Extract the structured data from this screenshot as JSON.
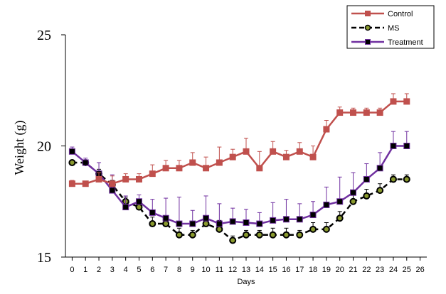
{
  "chart_data": {
    "type": "line",
    "title": "",
    "xlabel": "Days",
    "ylabel": "Weight (g)",
    "xlim": [
      -0.5,
      26.5
    ],
    "ylim": [
      15,
      25
    ],
    "x_ticks": [
      0,
      1,
      2,
      3,
      4,
      5,
      6,
      7,
      8,
      9,
      10,
      11,
      12,
      13,
      14,
      15,
      16,
      17,
      18,
      19,
      20,
      21,
      22,
      23,
      24,
      25,
      26
    ],
    "y_ticks": [
      15,
      20,
      25
    ],
    "grid": false,
    "legend_position": "top-right",
    "x": [
      0,
      1,
      2,
      3,
      4,
      5,
      6,
      7,
      8,
      9,
      10,
      11,
      12,
      13,
      14,
      15,
      16,
      17,
      18,
      19,
      20,
      21,
      22,
      23,
      24,
      25
    ],
    "series": [
      {
        "name": "Control",
        "color": "#c0504d",
        "line": "solid",
        "marker": "square",
        "values": [
          18.3,
          18.3,
          18.5,
          18.3,
          18.5,
          18.5,
          18.75,
          19.0,
          19.0,
          19.25,
          19.0,
          19.25,
          19.5,
          19.75,
          19.0,
          19.75,
          19.5,
          19.75,
          19.5,
          20.75,
          21.5,
          21.5,
          21.5,
          21.5,
          22.0,
          22.0
        ],
        "error": [
          0.15,
          0.1,
          0.3,
          0.35,
          0.25,
          0.25,
          0.4,
          0.35,
          0.35,
          0.45,
          0.5,
          0.7,
          0.35,
          0.6,
          0.75,
          0.45,
          0.3,
          0.4,
          0.5,
          0.4,
          0.25,
          0.2,
          0.2,
          0.2,
          0.35,
          0.35
        ]
      },
      {
        "name": "MS",
        "color": "#000000",
        "line": "dashed",
        "marker": "circle",
        "marker_fill": "#8a9a2e",
        "values": [
          19.25,
          19.25,
          18.75,
          18.25,
          17.5,
          17.25,
          16.5,
          16.5,
          16.0,
          16.0,
          16.5,
          16.25,
          15.75,
          16.0,
          16.0,
          16.0,
          16.0,
          16.0,
          16.25,
          16.25,
          16.75,
          17.5,
          17.75,
          18.0,
          18.5,
          18.5
        ],
        "error": [
          0.1,
          0.1,
          0.2,
          0.2,
          0.2,
          0.2,
          0.3,
          0.3,
          0.3,
          0.2,
          0.3,
          0.4,
          0.2,
          0.2,
          0.2,
          0.3,
          0.3,
          0.2,
          0.3,
          0.3,
          0.3,
          0.3,
          0.3,
          0.3,
          0.2,
          0.2
        ]
      },
      {
        "name": "Treatment",
        "color": "#7030a0",
        "line": "solid",
        "marker": "square",
        "marker_fill": "#000000",
        "values": [
          19.75,
          19.25,
          18.75,
          18.0,
          17.25,
          17.5,
          17.0,
          16.75,
          16.5,
          16.5,
          16.75,
          16.5,
          16.6,
          16.55,
          16.5,
          16.65,
          16.7,
          16.7,
          16.9,
          17.35,
          17.5,
          17.9,
          18.5,
          19.0,
          20.0,
          20.0
        ],
        "error": [
          0.2,
          0.2,
          0.5,
          0.7,
          0.5,
          0.3,
          0.6,
          0.9,
          1.2,
          0.6,
          1.0,
          0.9,
          0.6,
          0.6,
          0.5,
          0.8,
          0.9,
          0.7,
          0.6,
          0.8,
          1.1,
          0.9,
          0.7,
          0.7,
          0.65,
          0.65
        ]
      }
    ]
  }
}
